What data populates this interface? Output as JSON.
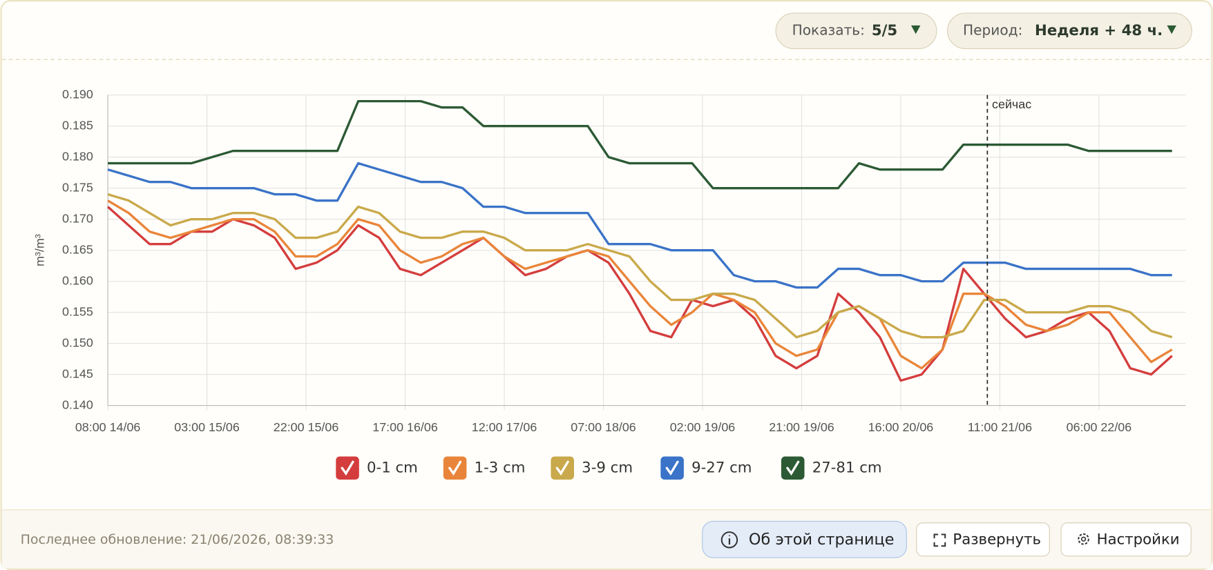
{
  "controls": {
    "show_label": "Показать:",
    "show_value": "5/5",
    "period_label": "Период:",
    "period_value": "Неделя + 48 ч."
  },
  "chart_data": {
    "type": "line",
    "y_label": "m³/m³",
    "x": [
      0,
      4,
      8,
      12,
      16,
      20,
      24,
      28,
      32,
      36,
      40,
      44,
      48,
      52,
      56,
      60,
      64,
      68,
      72,
      76,
      80,
      84,
      88,
      92,
      96,
      100,
      104,
      108,
      112,
      116,
      120,
      124,
      128,
      132,
      136,
      140,
      144,
      148,
      152,
      156,
      160,
      164,
      168,
      172,
      176,
      180,
      184,
      188,
      192,
      196,
      200,
      204
    ],
    "xlim": [
      0,
      206.6
    ],
    "xticks": [
      {
        "value": 0,
        "label": "08:00 14/06"
      },
      {
        "value": 19,
        "label": "03:00 15/06"
      },
      {
        "value": 38,
        "label": "22:00 15/06"
      },
      {
        "value": 57,
        "label": "17:00 16/06"
      },
      {
        "value": 76,
        "label": "12:00 17/06"
      },
      {
        "value": 95,
        "label": "07:00 18/06"
      },
      {
        "value": 114,
        "label": "02:00 19/06"
      },
      {
        "value": 133,
        "label": "21:00 19/06"
      },
      {
        "value": 152,
        "label": "16:00 20/06"
      },
      {
        "value": 171,
        "label": "11:00 21/06"
      },
      {
        "value": 190,
        "label": "06:00 22/06"
      }
    ],
    "ylim": [
      0.14,
      0.19
    ],
    "yticks": [
      {
        "value": 0.14,
        "label": "0.140"
      },
      {
        "value": 0.145,
        "label": "0.145"
      },
      {
        "value": 0.15,
        "label": "0.150"
      },
      {
        "value": 0.155,
        "label": "0.155"
      },
      {
        "value": 0.16,
        "label": "0.160"
      },
      {
        "value": 0.165,
        "label": "0.165"
      },
      {
        "value": 0.17,
        "label": "0.170"
      },
      {
        "value": 0.175,
        "label": "0.175"
      },
      {
        "value": 0.18,
        "label": "0.180"
      },
      {
        "value": 0.185,
        "label": "0.185"
      },
      {
        "value": 0.19,
        "label": "0.190"
      }
    ],
    "grid": true,
    "now_marker": {
      "x": 168.6,
      "label": "сейчас"
    },
    "series": [
      {
        "name": "0-1 cm",
        "color": "#d43d3d",
        "values": [
          0.172,
          0.169,
          0.166,
          0.166,
          0.168,
          0.168,
          0.17,
          0.169,
          0.167,
          0.162,
          0.163,
          0.165,
          0.169,
          0.167,
          0.162,
          0.161,
          0.163,
          0.165,
          0.167,
          0.164,
          0.161,
          0.162,
          0.164,
          0.165,
          0.163,
          0.158,
          0.152,
          0.151,
          0.157,
          0.156,
          0.157,
          0.154,
          0.148,
          0.146,
          0.148,
          0.158,
          0.155,
          0.151,
          0.144,
          0.145,
          0.149,
          0.162,
          0.158,
          0.154,
          0.151,
          0.152,
          0.154,
          0.155,
          0.152,
          0.146,
          0.145,
          0.148
        ]
      },
      {
        "name": "1-3 cm",
        "color": "#e9853a",
        "values": [
          0.173,
          0.171,
          0.168,
          0.167,
          0.168,
          0.169,
          0.17,
          0.17,
          0.168,
          0.164,
          0.164,
          0.166,
          0.17,
          0.169,
          0.165,
          0.163,
          0.164,
          0.166,
          0.167,
          0.164,
          0.162,
          0.163,
          0.164,
          0.165,
          0.164,
          0.16,
          0.156,
          0.153,
          0.155,
          0.158,
          0.157,
          0.155,
          0.15,
          0.148,
          0.149,
          0.155,
          0.156,
          0.154,
          0.148,
          0.146,
          0.149,
          0.158,
          0.158,
          0.156,
          0.153,
          0.152,
          0.153,
          0.155,
          0.155,
          0.151,
          0.147,
          0.149
        ]
      },
      {
        "name": "3-9 cm",
        "color": "#c9a94b",
        "values": [
          0.174,
          0.173,
          0.171,
          0.169,
          0.17,
          0.17,
          0.171,
          0.171,
          0.17,
          0.167,
          0.167,
          0.168,
          0.172,
          0.171,
          0.168,
          0.167,
          0.167,
          0.168,
          0.168,
          0.167,
          0.165,
          0.165,
          0.165,
          0.166,
          0.165,
          0.164,
          0.16,
          0.157,
          0.157,
          0.158,
          0.158,
          0.157,
          0.154,
          0.151,
          0.152,
          0.155,
          0.156,
          0.154,
          0.152,
          0.151,
          0.151,
          0.152,
          0.157,
          0.157,
          0.155,
          0.155,
          0.155,
          0.156,
          0.156,
          0.155,
          0.152,
          0.151
        ]
      },
      {
        "name": "9-27 cm",
        "color": "#3a73c8",
        "values": [
          0.178,
          0.177,
          0.176,
          0.176,
          0.175,
          0.175,
          0.175,
          0.175,
          0.174,
          0.174,
          0.173,
          0.173,
          0.179,
          0.178,
          0.177,
          0.176,
          0.176,
          0.175,
          0.172,
          0.172,
          0.171,
          0.171,
          0.171,
          0.171,
          0.166,
          0.166,
          0.166,
          0.165,
          0.165,
          0.165,
          0.161,
          0.16,
          0.16,
          0.159,
          0.159,
          0.162,
          0.162,
          0.161,
          0.161,
          0.16,
          0.16,
          0.163,
          0.163,
          0.163,
          0.162,
          0.162,
          0.162,
          0.162,
          0.162,
          0.162,
          0.161,
          0.161
        ]
      },
      {
        "name": "27-81 cm",
        "color": "#2c5a34",
        "values": [
          0.179,
          0.179,
          0.179,
          0.179,
          0.179,
          0.18,
          0.181,
          0.181,
          0.181,
          0.181,
          0.181,
          0.181,
          0.189,
          0.189,
          0.189,
          0.189,
          0.188,
          0.188,
          0.185,
          0.185,
          0.185,
          0.185,
          0.185,
          0.185,
          0.18,
          0.179,
          0.179,
          0.179,
          0.179,
          0.175,
          0.175,
          0.175,
          0.175,
          0.175,
          0.175,
          0.175,
          0.179,
          0.178,
          0.178,
          0.178,
          0.178,
          0.182,
          0.182,
          0.182,
          0.182,
          0.182,
          0.182,
          0.181,
          0.181,
          0.181,
          0.181,
          0.181
        ]
      }
    ]
  },
  "footer": {
    "last_update": "Последнее обновление: 21/06/2026, 08:39:33",
    "buttons": [
      "Об этой странице",
      "Развернуть",
      "Настройки"
    ]
  }
}
